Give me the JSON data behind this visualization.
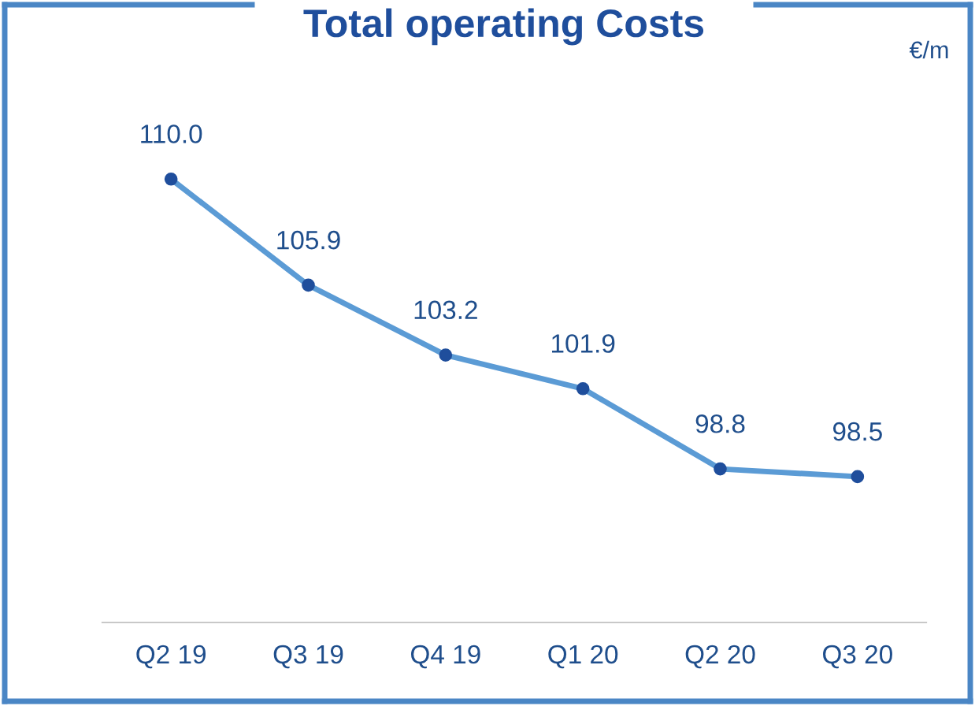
{
  "chart_data": {
    "type": "line",
    "title": "Total operating Costs",
    "annotations": [
      "€/m"
    ],
    "categories": [
      "Q2 19",
      "Q3 19",
      "Q4 19",
      "Q1 20",
      "Q2 20",
      "Q3 20"
    ],
    "series": [
      {
        "color": "#5b9bd5",
        "values": [
          110.0,
          105.9,
          103.2,
          101.9,
          98.8,
          98.5
        ],
        "value_labels": [
          "110.0",
          "105.9",
          "103.2",
          "101.9",
          "98.8",
          "98.5"
        ]
      }
    ],
    "tick_labels": "x",
    "marker": "circle",
    "line_style": "solid",
    "grid": false,
    "legend": false
  }
}
